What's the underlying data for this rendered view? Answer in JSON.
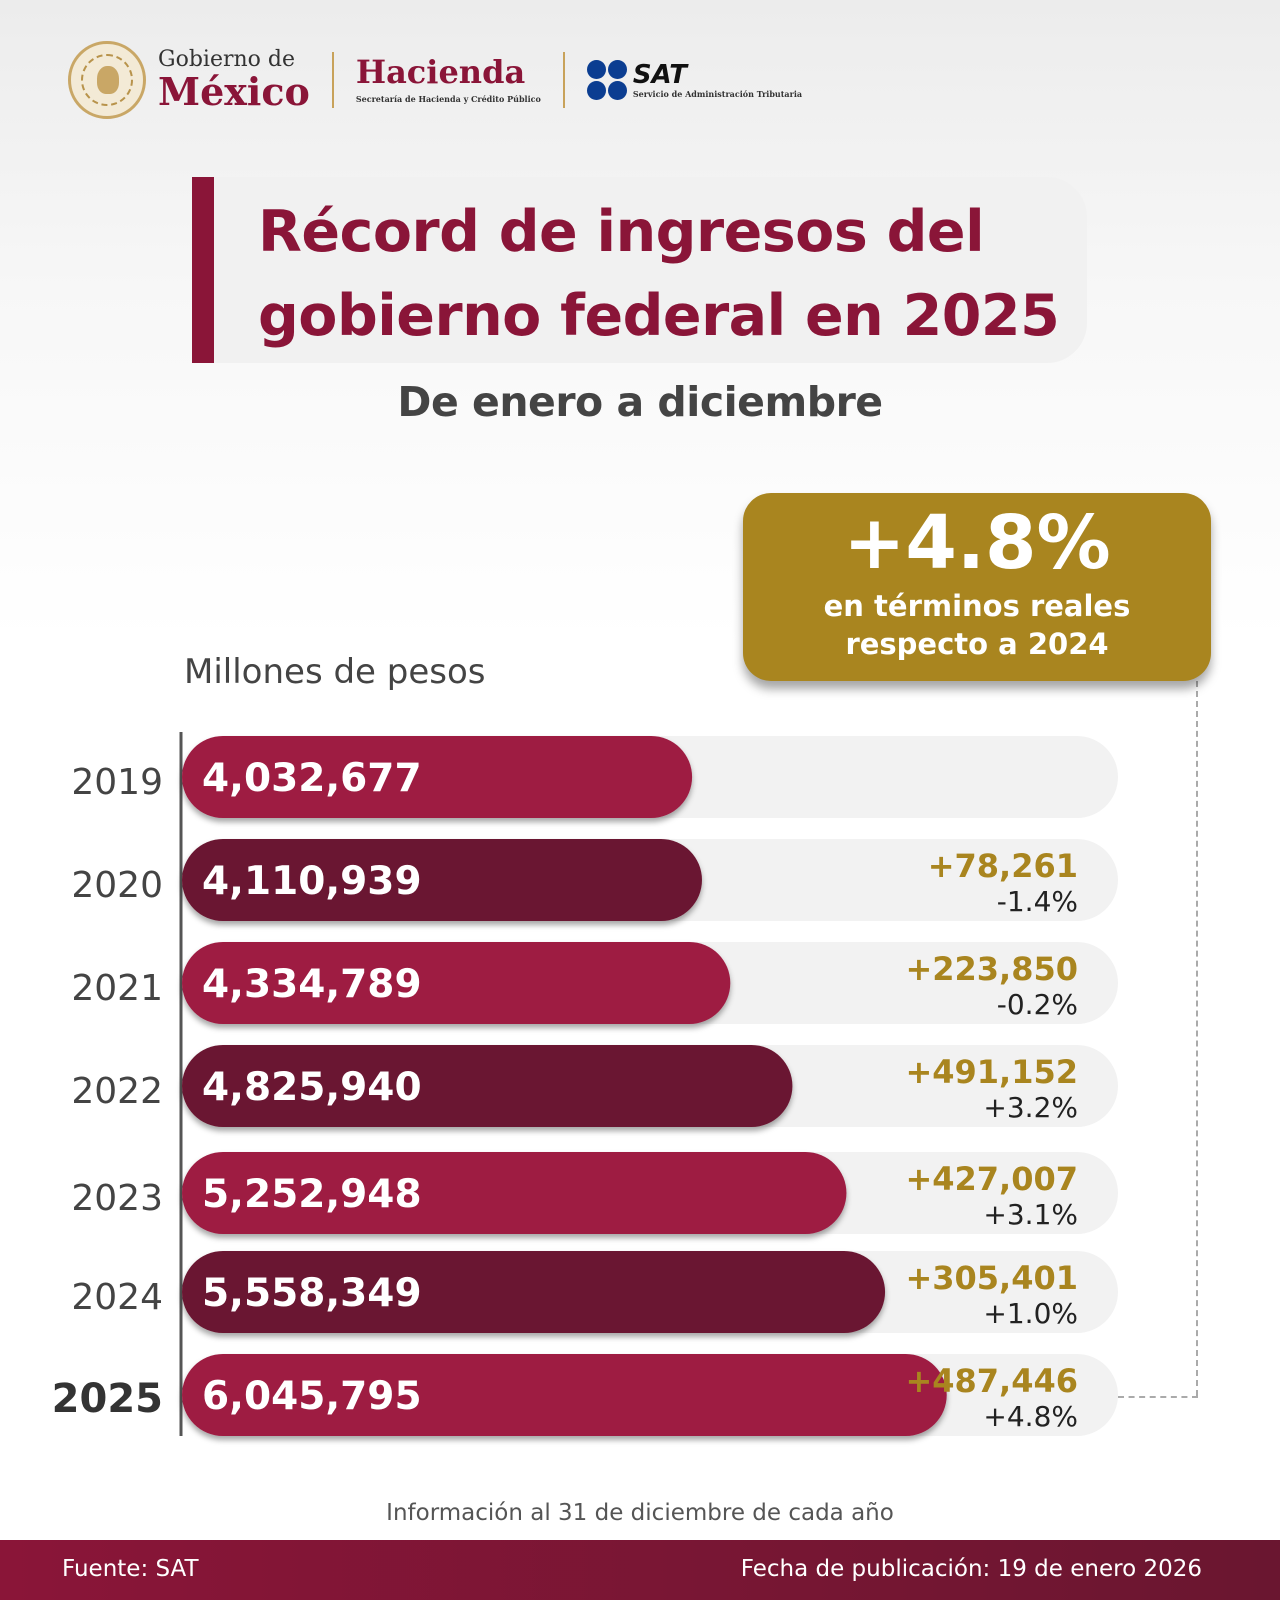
{
  "header": {
    "gobierno_line1": "Gobierno de",
    "gobierno_line2": "México",
    "hacienda_name": "Hacienda",
    "hacienda_sub": "Secretaría de Hacienda y Crédito Público",
    "sat_name": "SAT",
    "sat_sub": "Servicio de Administración Tributaria"
  },
  "title": {
    "line1": "Récord de ingresos del",
    "line2": "gobierno federal en 2025",
    "subtitle": "De enero a diciembre"
  },
  "highlight": {
    "value": "+4.8%",
    "note": "en términos reales respecto a 2024"
  },
  "colors": {
    "bar_primary": "#9e1c42",
    "bar_dark": "#6a1730",
    "track": "#f2f2f2",
    "change_gold": "#a9851f",
    "pct_dark": "#222222"
  },
  "chart_data": {
    "type": "bar",
    "orientation": "horizontal",
    "ylabel": "Millones de pesos",
    "categories": [
      "2019",
      "2020",
      "2021",
      "2022",
      "2023",
      "2024",
      "2025"
    ],
    "values": [
      4032677,
      4110939,
      4334789,
      4825940,
      5252948,
      5558349,
      6045795
    ],
    "value_labels": [
      "4,032,677",
      "4,110,939",
      "4,334,789",
      "4,825,940",
      "5,252,948",
      "5,558,349",
      "6,045,795"
    ],
    "change_abs": [
      "",
      "+78,261",
      "+223,850",
      "+491,152",
      "+427,007",
      "+305,401",
      "+487,446"
    ],
    "change_pct": [
      "",
      "-1.4%",
      "-0.2%",
      "+3.2%",
      "+3.1%",
      "+1.0%",
      "+4.8%"
    ],
    "highlight_category": "2025",
    "grid": false,
    "legend": "none"
  },
  "footer": {
    "info": "Información al 31 de diciembre de cada año",
    "source": "Fuente: SAT",
    "published": "Fecha de publicación: 19 de enero 2026"
  }
}
